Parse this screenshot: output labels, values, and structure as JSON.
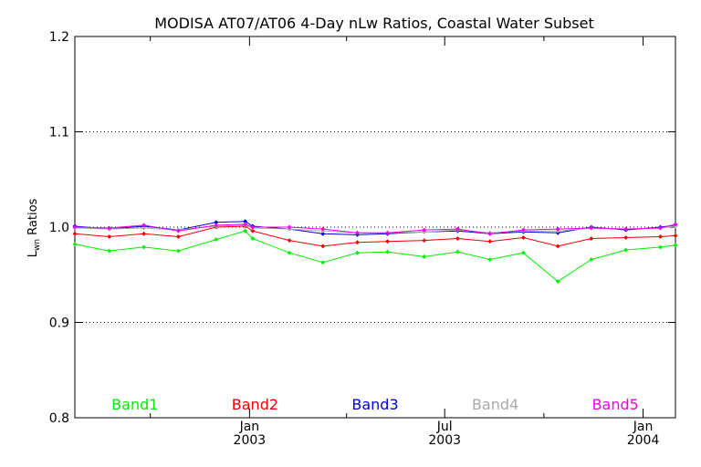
{
  "chart_data": {
    "type": "line",
    "title": "MODISA AT07/AT06 4-Day nLw Ratios, Coastal Water Subset",
    "xlabel": "",
    "ylabel": "Lwn Ratios",
    "ylabel_main": "L",
    "ylabel_sub": "wn",
    "ylabel_rest": " Ratios",
    "ylim": [
      0.8,
      1.2
    ],
    "yticks": [
      "0.8",
      "0.9",
      "1.0",
      "1.1",
      "1.2"
    ],
    "grid": "dotted horizontal at 0.9, 1.0, 1.1",
    "xlim": [
      "2002-07-23",
      "2004-01-31"
    ],
    "xticks": [
      {
        "date": "2003-01-01",
        "month": "Jan",
        "year": "2003"
      },
      {
        "date": "2003-07-01",
        "month": "Jul",
        "year": "2003"
      },
      {
        "date": "2004-01-01",
        "month": "Jan",
        "year": "2004"
      }
    ],
    "minor_ticks": [
      "2002-10-01",
      "2003-04-01",
      "2003-10-01"
    ],
    "x": [
      "2002-07-23",
      "2002-08-24",
      "2002-09-25",
      "2002-10-27",
      "2002-12-01",
      "2002-12-28",
      "2003-01-04",
      "2003-02-07",
      "2003-03-10",
      "2003-04-11",
      "2003-05-09",
      "2003-06-12",
      "2003-07-13",
      "2003-08-12",
      "2003-09-12",
      "2003-10-14",
      "2003-11-14",
      "2003-12-16",
      "2004-01-17",
      "2004-01-31"
    ],
    "series": [
      {
        "name": "Band1",
        "color": "#00ee00",
        "values": [
          0.982,
          0.975,
          0.979,
          0.975,
          0.987,
          0.996,
          0.988,
          0.973,
          0.963,
          0.973,
          0.974,
          0.969,
          0.974,
          0.966,
          0.973,
          0.943,
          0.966,
          0.976,
          0.979,
          0.981
        ]
      },
      {
        "name": "Band2",
        "color": "#ee0000",
        "values": [
          0.993,
          0.99,
          0.993,
          0.99,
          1.0,
          1.001,
          0.996,
          0.986,
          0.98,
          0.984,
          0.985,
          0.986,
          0.988,
          0.985,
          0.989,
          0.98,
          0.988,
          0.989,
          0.99,
          0.991
        ]
      },
      {
        "name": "Band3",
        "color": "#0000dd",
        "values": [
          1.001,
          0.998,
          1.001,
          0.997,
          1.005,
          1.006,
          1.001,
          0.998,
          0.993,
          0.992,
          0.993,
          0.995,
          0.996,
          0.993,
          0.995,
          0.994,
          1.0,
          0.997,
          1.0,
          1.002
        ]
      },
      {
        "name": "Band4",
        "color": "#aaaaaa",
        "values": [
          0.999,
          0.998,
          0.999,
          0.997,
          1.001,
          1.002,
          0.999,
          0.998,
          0.996,
          0.994,
          0.994,
          0.995,
          0.997,
          0.994,
          0.996,
          0.996,
          0.999,
          0.998,
          0.999,
          1.001
        ]
      },
      {
        "name": "Band5",
        "color": "#ee00ee",
        "values": [
          1.0,
          0.999,
          1.002,
          0.996,
          1.002,
          1.003,
          1.0,
          1.0,
          0.998,
          0.994,
          0.994,
          0.997,
          0.998,
          0.993,
          0.997,
          0.998,
          0.999,
          0.998,
          0.999,
          1.003
        ]
      }
    ],
    "legend_placement": "bottom, horizontal row inside plot"
  }
}
